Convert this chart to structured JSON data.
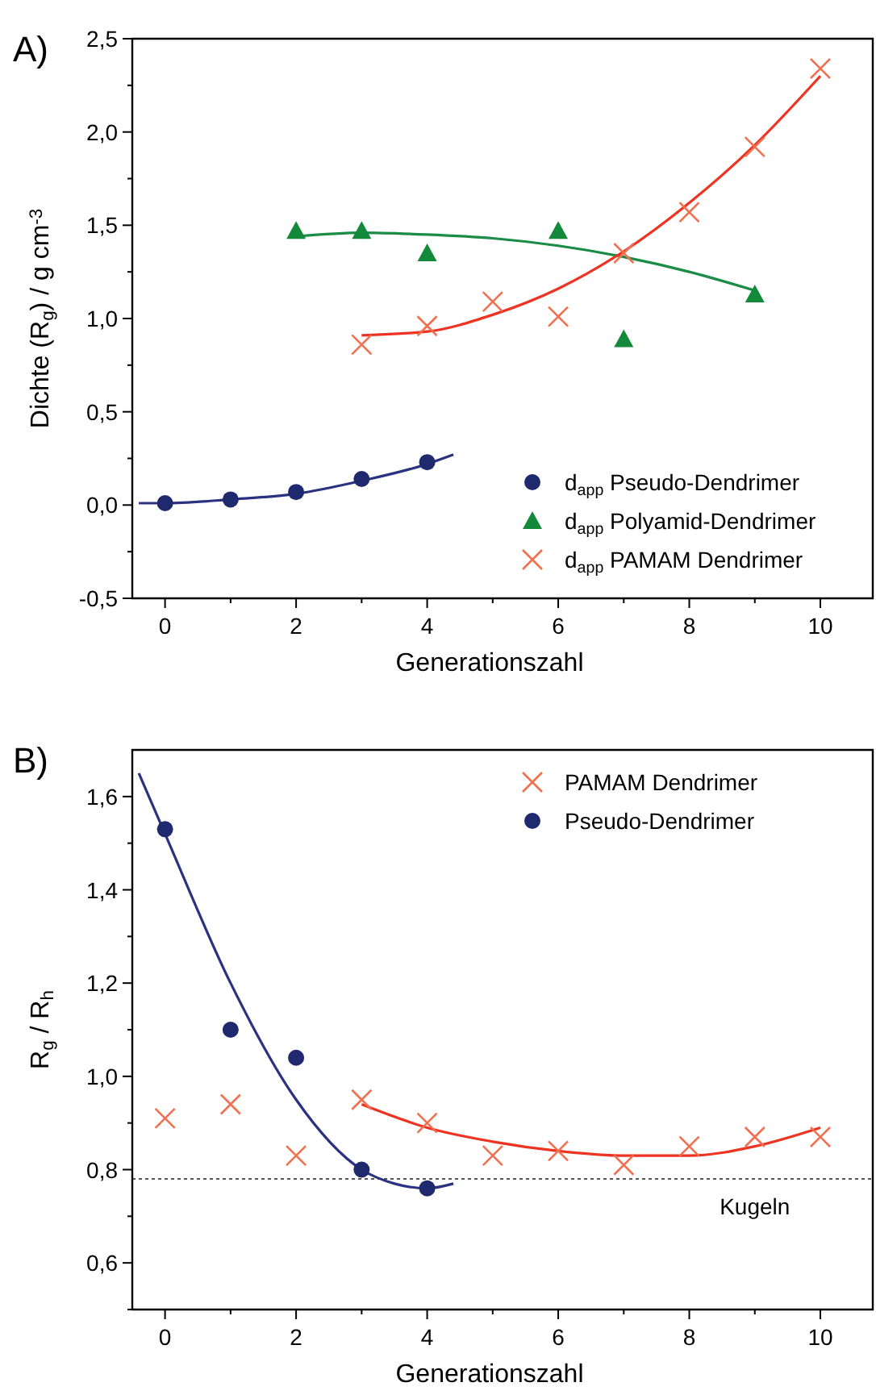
{
  "chart_data": [
    {
      "type": "scatter",
      "title": "A)",
      "xlabel": "Generationszahl",
      "ylabel": "Dichte (R$_{g}$) / g cm$^{-3}$",
      "legend": "bottom right",
      "grid": false,
      "xlim": [
        -0.5,
        10.8
      ],
      "xticks": [
        0,
        {
          "value": 1,
          "label": null
        },
        2,
        {
          "value": 3,
          "label": null
        },
        4,
        {
          "value": 5,
          "label": null
        },
        6,
        {
          "value": 7,
          "label": null
        },
        8,
        {
          "value": 9,
          "label": null
        },
        10
      ],
      "ylim": [
        -0.5,
        2.5
      ],
      "yticks": [
        {
          "value": -0.5,
          "label": "-0,5"
        },
        {
          "value": -0.25,
          "label": null
        },
        {
          "value": 0,
          "label": "0,0"
        },
        {
          "value": 0.25,
          "label": null
        },
        {
          "value": 0.5,
          "label": "0,5"
        },
        {
          "value": 0.75,
          "label": null
        },
        {
          "value": 1,
          "label": "1,0"
        },
        {
          "value": 1.25,
          "label": null
        },
        {
          "value": 1.5,
          "label": "1,5"
        },
        {
          "value": 1.75,
          "label": null
        },
        {
          "value": 2,
          "label": "2,0"
        },
        {
          "value": 2.25,
          "label": null
        },
        {
          "value": 2.5,
          "label": "2,5"
        }
      ],
      "series": [
        {
          "type": "line",
          "color": "#2b3280",
          "marker": "none",
          "line_style": "solid",
          "x": [
            -0.4,
            0,
            1,
            2,
            3,
            4,
            4.4
          ],
          "values": [
            0.01,
            0.01,
            0.03,
            0.06,
            0.13,
            0.22,
            0.27
          ]
        },
        {
          "type": "line",
          "color": "#1a8c45",
          "marker": "none",
          "line_style": "solid",
          "x": [
            2,
            3,
            4,
            5,
            6,
            7,
            8,
            9
          ],
          "values": [
            1.44,
            1.46,
            1.45,
            1.43,
            1.39,
            1.33,
            1.25,
            1.15
          ]
        },
        {
          "type": "line",
          "color": "#ee3322",
          "marker": "none",
          "line_style": "solid",
          "x": [
            3,
            4,
            5,
            6,
            7,
            8,
            9,
            10
          ],
          "values": [
            0.91,
            0.93,
            1.02,
            1.16,
            1.36,
            1.62,
            1.93,
            2.3
          ]
        },
        {
          "name": "d$_{app}$ Pseudo-Dendrimer",
          "color": "#1f2a6e",
          "marker": "circle",
          "x": [
            0,
            1,
            2,
            3,
            4
          ],
          "values": [
            0.01,
            0.03,
            0.07,
            0.14,
            0.23
          ]
        },
        {
          "name": "d$_{app}$ Polyamid-Dendrimer",
          "color": "#138a3a",
          "marker": "triangle",
          "x": [
            2,
            3,
            4,
            6,
            7,
            9
          ],
          "values": [
            1.47,
            1.47,
            1.35,
            1.47,
            0.89,
            1.13
          ]
        },
        {
          "name": "d$_{app}$ PAMAM Dendrimer",
          "color": "#f07050",
          "marker": "cross",
          "x": [
            3,
            4,
            5,
            6,
            7,
            8,
            9,
            10
          ],
          "values": [
            0.86,
            0.96,
            1.09,
            1.01,
            1.35,
            1.57,
            1.92,
            2.34
          ]
        }
      ]
    },
    {
      "type": "scatter",
      "title": "B)",
      "xlabel": "Generationszahl",
      "ylabel": "R$_{g}$ / R$_{h}$",
      "legend": "top right",
      "grid": false,
      "xlim": [
        -0.5,
        10.8
      ],
      "xticks": [
        0,
        {
          "value": 1,
          "label": null
        },
        2,
        {
          "value": 3,
          "label": null
        },
        4,
        {
          "value": 5,
          "label": null
        },
        6,
        {
          "value": 7,
          "label": null
        },
        8,
        {
          "value": 9,
          "label": null
        },
        10
      ],
      "ylim": [
        0.5,
        1.7
      ],
      "yticks": [
        {
          "value": 0.5,
          "label": null
        },
        {
          "value": 0.6,
          "label": "0,6"
        },
        {
          "value": 0.7,
          "label": null
        },
        {
          "value": 0.8,
          "label": "0,8"
        },
        {
          "value": 0.9,
          "label": null
        },
        {
          "value": 1,
          "label": "1,0"
        },
        {
          "value": 1.1,
          "label": null
        },
        {
          "value": 1.2,
          "label": "1,2"
        },
        {
          "value": 1.3,
          "label": null
        },
        {
          "value": 1.4,
          "label": "1,4"
        },
        {
          "value": 1.5,
          "label": null
        },
        {
          "value": 1.6,
          "label": "1,6"
        }
      ],
      "ref_lines": [
        {
          "axis": "y",
          "value": 0.78,
          "label": "Kugeln",
          "color": "#555555",
          "line_style": "dotted"
        }
      ],
      "series": [
        {
          "type": "line",
          "color": "#ee3322",
          "marker": "none",
          "line_style": "solid",
          "x": [
            3,
            4,
            5,
            6,
            7,
            8,
            9,
            10
          ],
          "values": [
            0.94,
            0.89,
            0.86,
            0.84,
            0.83,
            0.83,
            0.85,
            0.89
          ]
        },
        {
          "type": "line",
          "color": "#2b3280",
          "marker": "none",
          "line_style": "solid",
          "x": [
            -0.4,
            0,
            1,
            2,
            3,
            3.5,
            4,
            4.4
          ],
          "values": [
            1.65,
            1.52,
            1.2,
            0.95,
            0.8,
            0.77,
            0.76,
            0.77
          ]
        },
        {
          "name": "PAMAM Dendrimer",
          "color": "#f07050",
          "marker": "cross",
          "x": [
            0,
            1,
            2,
            3,
            4,
            5,
            6,
            7,
            8,
            9,
            10
          ],
          "values": [
            0.91,
            0.94,
            0.83,
            0.95,
            0.9,
            0.83,
            0.84,
            0.81,
            0.85,
            0.87,
            0.87
          ]
        },
        {
          "name": "Pseudo-Dendrimer",
          "color": "#1f2a6e",
          "marker": "circle",
          "x": [
            0,
            1,
            2,
            3,
            4
          ],
          "values": [
            1.53,
            1.1,
            1.04,
            0.8,
            0.76
          ]
        }
      ]
    }
  ]
}
